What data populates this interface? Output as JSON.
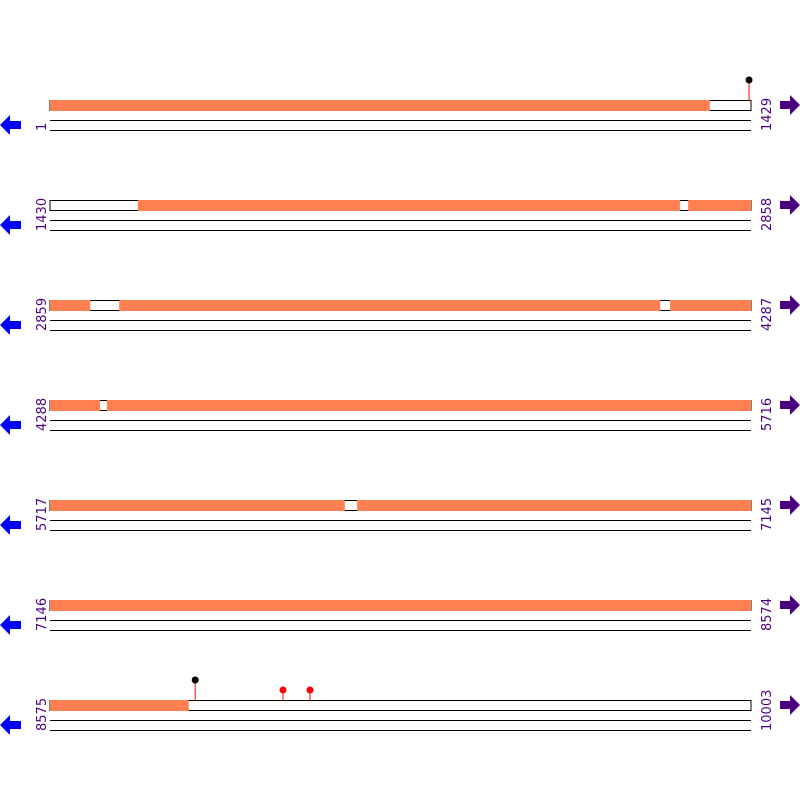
{
  "colors": {
    "coverage": "#ff7f50",
    "line": "#000000",
    "left_arrow": "#0000ff",
    "right_arrow": "#4b0082",
    "label": "#4b0082",
    "pin_black": "#000000",
    "pin_red": "#ff0000",
    "stem": "#ff0000"
  },
  "rows": [
    {
      "start": "1",
      "end": "1429"
    },
    {
      "start": "1430",
      "end": "2858"
    },
    {
      "start": "2859",
      "end": "4287"
    },
    {
      "start": "4288",
      "end": "5716"
    },
    {
      "start": "5717",
      "end": "7145"
    },
    {
      "start": "7146",
      "end": "8574"
    },
    {
      "start": "8575",
      "end": "10003"
    }
  ],
  "row_length": 1429,
  "covered_ranges": [
    [
      1,
      1346
    ],
    [
      1609,
      2714
    ],
    [
      2731,
      2941
    ],
    [
      3000,
      4103
    ],
    [
      4123,
      4390
    ],
    [
      4404,
      6318
    ],
    [
      6343,
      8858
    ]
  ],
  "pins": [
    {
      "position": 1426,
      "color": "black"
    },
    {
      "position": 8871,
      "color": "black"
    },
    {
      "position": 9050,
      "color": "red"
    },
    {
      "position": 9105,
      "color": "red"
    }
  ],
  "icons": {
    "left": "arrow-left-icon",
    "right": "arrow-right-icon"
  }
}
